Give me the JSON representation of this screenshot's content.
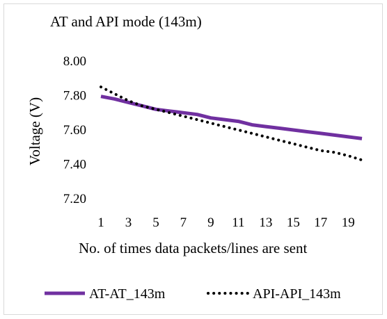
{
  "chart_data": {
    "type": "line",
    "title": "AT and API mode (143m)",
    "xlabel": "No. of times data packets/lines are sent",
    "ylabel": "Voltage (V)",
    "ylim": [
      7.2,
      8.0
    ],
    "yticks": [
      "7.20",
      "7.40",
      "7.60",
      "7.80",
      "8.00"
    ],
    "x": [
      1,
      2,
      3,
      4,
      5,
      6,
      7,
      8,
      9,
      10,
      11,
      12,
      13,
      14,
      15,
      16,
      17,
      18,
      19,
      20
    ],
    "xtick_labels": [
      "1",
      "3",
      "5",
      "7",
      "9",
      "11",
      "13",
      "15",
      "17",
      "19"
    ],
    "grid": false,
    "legend_position": "bottom",
    "series": [
      {
        "name": "AT-AT_143m",
        "color": "#7030a0",
        "style": "solid",
        "values": [
          7.795,
          7.78,
          7.76,
          7.74,
          7.72,
          7.71,
          7.7,
          7.69,
          7.67,
          7.66,
          7.65,
          7.63,
          7.62,
          7.61,
          7.6,
          7.59,
          7.58,
          7.57,
          7.56,
          7.55
        ]
      },
      {
        "name": "API-API_143m",
        "color": "#000000",
        "style": "dotted",
        "values": [
          7.85,
          7.81,
          7.77,
          7.74,
          7.72,
          7.7,
          7.68,
          7.66,
          7.64,
          7.62,
          7.6,
          7.58,
          7.56,
          7.54,
          7.52,
          7.5,
          7.48,
          7.47,
          7.45,
          7.425
        ]
      }
    ]
  }
}
